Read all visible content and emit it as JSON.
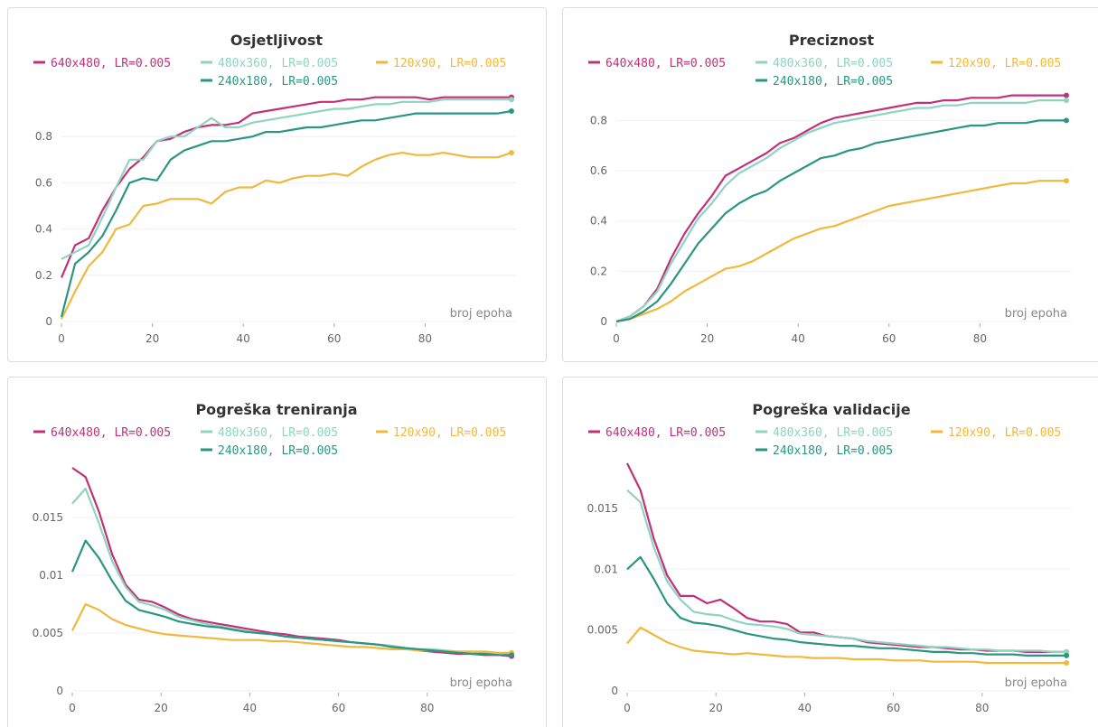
{
  "chart_data": [
    {
      "type": "line",
      "title": "Osjetljivost",
      "xlabel": "broj epoha",
      "grid": true,
      "x": [
        0,
        3,
        6,
        9,
        12,
        15,
        18,
        21,
        24,
        27,
        30,
        33,
        36,
        39,
        42,
        45,
        48,
        51,
        54,
        57,
        60,
        63,
        66,
        69,
        72,
        75,
        78,
        81,
        84,
        87,
        90,
        93,
        96,
        99
      ],
      "xlim": [
        0,
        100
      ],
      "xticks": [
        0,
        20,
        40,
        60,
        80
      ],
      "ylim": [
        0,
        1
      ],
      "yticks": [
        0,
        0.2,
        0.4,
        0.6,
        0.8
      ],
      "series": [
        {
          "name": "640x480, LR=0.005",
          "color": "#c2307a",
          "values": [
            0.19,
            0.33,
            0.36,
            0.48,
            0.58,
            0.66,
            0.71,
            0.78,
            0.79,
            0.82,
            0.84,
            0.85,
            0.85,
            0.86,
            0.9,
            0.91,
            0.92,
            0.93,
            0.94,
            0.95,
            0.95,
            0.96,
            0.96,
            0.97,
            0.97,
            0.97,
            0.97,
            0.96,
            0.97,
            0.97,
            0.97,
            0.97,
            0.97,
            0.97
          ]
        },
        {
          "name": "480x360, LR=0.005",
          "color": "#8fd3c0",
          "values": [
            0.27,
            0.3,
            0.33,
            0.45,
            0.58,
            0.7,
            0.7,
            0.78,
            0.8,
            0.8,
            0.84,
            0.88,
            0.84,
            0.84,
            0.86,
            0.87,
            0.88,
            0.89,
            0.9,
            0.91,
            0.92,
            0.92,
            0.93,
            0.94,
            0.94,
            0.95,
            0.95,
            0.95,
            0.96,
            0.96,
            0.96,
            0.96,
            0.96,
            0.96
          ]
        },
        {
          "name": "120x90, LR=0.005",
          "color": "#f0b83c",
          "values": [
            0.01,
            0.13,
            0.24,
            0.3,
            0.4,
            0.42,
            0.5,
            0.51,
            0.53,
            0.53,
            0.53,
            0.51,
            0.56,
            0.58,
            0.58,
            0.61,
            0.6,
            0.62,
            0.63,
            0.63,
            0.64,
            0.63,
            0.67,
            0.7,
            0.72,
            0.73,
            0.72,
            0.72,
            0.73,
            0.72,
            0.71,
            0.71,
            0.71,
            0.73
          ]
        },
        {
          "name": "240x180, LR=0.005",
          "color": "#2a9680",
          "values": [
            0.02,
            0.25,
            0.3,
            0.37,
            0.48,
            0.6,
            0.62,
            0.61,
            0.7,
            0.74,
            0.76,
            0.78,
            0.78,
            0.79,
            0.8,
            0.82,
            0.82,
            0.83,
            0.84,
            0.84,
            0.85,
            0.86,
            0.87,
            0.87,
            0.88,
            0.89,
            0.9,
            0.9,
            0.9,
            0.9,
            0.9,
            0.9,
            0.9,
            0.91
          ]
        }
      ]
    },
    {
      "type": "line",
      "title": "Preciznost",
      "xlabel": "broj epoha",
      "grid": true,
      "x": [
        0,
        3,
        6,
        9,
        12,
        15,
        18,
        21,
        24,
        27,
        30,
        33,
        36,
        39,
        42,
        45,
        48,
        51,
        54,
        57,
        60,
        63,
        66,
        69,
        72,
        75,
        78,
        81,
        84,
        87,
        90,
        93,
        96,
        99
      ],
      "xlim": [
        0,
        100
      ],
      "xticks": [
        0,
        20,
        40,
        60,
        80
      ],
      "ylim": [
        0,
        0.92
      ],
      "yticks": [
        0,
        0.2,
        0.4,
        0.6,
        0.8
      ],
      "series": [
        {
          "name": "640x480, LR=0.005",
          "color": "#c2307a",
          "values": [
            0,
            0.02,
            0.06,
            0.13,
            0.25,
            0.35,
            0.43,
            0.5,
            0.58,
            0.61,
            0.64,
            0.67,
            0.71,
            0.73,
            0.76,
            0.79,
            0.81,
            0.82,
            0.83,
            0.84,
            0.85,
            0.86,
            0.87,
            0.87,
            0.88,
            0.88,
            0.89,
            0.89,
            0.89,
            0.9,
            0.9,
            0.9,
            0.9,
            0.9
          ]
        },
        {
          "name": "480x360, LR=0.005",
          "color": "#8fd3c0",
          "values": [
            0,
            0.02,
            0.06,
            0.12,
            0.23,
            0.32,
            0.41,
            0.47,
            0.54,
            0.59,
            0.62,
            0.65,
            0.69,
            0.72,
            0.75,
            0.77,
            0.79,
            0.8,
            0.81,
            0.82,
            0.83,
            0.84,
            0.85,
            0.85,
            0.86,
            0.86,
            0.87,
            0.87,
            0.87,
            0.87,
            0.87,
            0.88,
            0.88,
            0.88
          ]
        },
        {
          "name": "120x90, LR=0.005",
          "color": "#f0b83c",
          "values": [
            0,
            0.01,
            0.03,
            0.05,
            0.08,
            0.12,
            0.15,
            0.18,
            0.21,
            0.22,
            0.24,
            0.27,
            0.3,
            0.33,
            0.35,
            0.37,
            0.38,
            0.4,
            0.42,
            0.44,
            0.46,
            0.47,
            0.48,
            0.49,
            0.5,
            0.51,
            0.52,
            0.53,
            0.54,
            0.55,
            0.55,
            0.56,
            0.56,
            0.56
          ]
        },
        {
          "name": "240x180, LR=0.005",
          "color": "#2a9680",
          "values": [
            0,
            0.01,
            0.04,
            0.08,
            0.15,
            0.23,
            0.31,
            0.37,
            0.43,
            0.47,
            0.5,
            0.52,
            0.56,
            0.59,
            0.62,
            0.65,
            0.66,
            0.68,
            0.69,
            0.71,
            0.72,
            0.73,
            0.74,
            0.75,
            0.76,
            0.77,
            0.78,
            0.78,
            0.79,
            0.79,
            0.79,
            0.8,
            0.8,
            0.8
          ]
        }
      ]
    },
    {
      "type": "line",
      "title": "Pogreška treniranja",
      "xlabel": "broj epoha",
      "grid": true,
      "x": [
        0,
        3,
        6,
        9,
        12,
        15,
        18,
        21,
        24,
        27,
        30,
        33,
        36,
        39,
        42,
        45,
        48,
        51,
        54,
        57,
        60,
        63,
        66,
        69,
        72,
        75,
        78,
        81,
        84,
        87,
        90,
        93,
        96,
        99
      ],
      "xlim": [
        0,
        100
      ],
      "xticks": [
        0,
        20,
        40,
        60,
        80
      ],
      "ylim": [
        0,
        0.02
      ],
      "yticks": [
        0,
        0.005,
        0.01,
        0.015
      ],
      "series": [
        {
          "name": "640x480, LR=0.005",
          "color": "#c2307a",
          "values": [
            0.0193,
            0.0185,
            0.0155,
            0.0118,
            0.0092,
            0.0079,
            0.0077,
            0.0072,
            0.0066,
            0.0062,
            0.006,
            0.0058,
            0.0056,
            0.0054,
            0.0052,
            0.005,
            0.0049,
            0.0047,
            0.0046,
            0.0045,
            0.0044,
            0.0042,
            0.0041,
            0.004,
            0.0039,
            0.0037,
            0.0035,
            0.0034,
            0.0033,
            0.0032,
            0.0032,
            0.0031,
            0.0031,
            0.003
          ]
        },
        {
          "name": "480x360, LR=0.005",
          "color": "#8fd3c0",
          "values": [
            0.0162,
            0.0175,
            0.0145,
            0.0112,
            0.009,
            0.0077,
            0.0074,
            0.007,
            0.0064,
            0.0061,
            0.0058,
            0.0056,
            0.0054,
            0.0052,
            0.005,
            0.0049,
            0.0047,
            0.0046,
            0.0045,
            0.0044,
            0.0043,
            0.0042,
            0.0041,
            0.004,
            0.0039,
            0.0037,
            0.0036,
            0.0036,
            0.0035,
            0.0034,
            0.0034,
            0.0033,
            0.0033,
            0.0032
          ]
        },
        {
          "name": "120x90, LR=0.005",
          "color": "#f0b83c",
          "values": [
            0.0052,
            0.0075,
            0.007,
            0.0062,
            0.0057,
            0.0054,
            0.0051,
            0.0049,
            0.0048,
            0.0047,
            0.0046,
            0.0045,
            0.0044,
            0.0044,
            0.0044,
            0.0043,
            0.0043,
            0.0042,
            0.0041,
            0.004,
            0.0039,
            0.0038,
            0.0038,
            0.0037,
            0.0036,
            0.0036,
            0.0035,
            0.0035,
            0.0034,
            0.0034,
            0.0034,
            0.0034,
            0.0033,
            0.0033
          ]
        },
        {
          "name": "240x180, LR=0.005",
          "color": "#2a9680",
          "values": [
            0.0103,
            0.013,
            0.0115,
            0.0095,
            0.0078,
            0.007,
            0.0067,
            0.0064,
            0.006,
            0.0058,
            0.0056,
            0.0055,
            0.0053,
            0.0051,
            0.005,
            0.0049,
            0.0047,
            0.0046,
            0.0045,
            0.0044,
            0.0043,
            0.0042,
            0.0041,
            0.004,
            0.0038,
            0.0037,
            0.0036,
            0.0035,
            0.0034,
            0.0033,
            0.0032,
            0.0032,
            0.0031,
            0.0031
          ]
        }
      ]
    },
    {
      "type": "line",
      "title": "Pogreška validacije",
      "xlabel": "broj epoha",
      "grid": true,
      "x": [
        0,
        3,
        6,
        9,
        12,
        15,
        18,
        21,
        24,
        27,
        30,
        33,
        36,
        39,
        42,
        45,
        48,
        51,
        54,
        57,
        60,
        63,
        66,
        69,
        72,
        75,
        78,
        81,
        84,
        87,
        90,
        93,
        96,
        99
      ],
      "xlim": [
        0,
        100
      ],
      "xticks": [
        0,
        20,
        40,
        60,
        80
      ],
      "ylim": [
        0,
        0.019
      ],
      "yticks": [
        0,
        0.005,
        0.01,
        0.015
      ],
      "series": [
        {
          "name": "640x480, LR=0.005",
          "color": "#c2307a",
          "values": [
            0.0187,
            0.0165,
            0.0125,
            0.0095,
            0.0078,
            0.0078,
            0.0072,
            0.0075,
            0.0068,
            0.006,
            0.0057,
            0.0057,
            0.0055,
            0.0048,
            0.0048,
            0.0045,
            0.0044,
            0.0043,
            0.004,
            0.0039,
            0.0038,
            0.0037,
            0.0036,
            0.0036,
            0.0035,
            0.0034,
            0.0034,
            0.0033,
            0.0033,
            0.0033,
            0.0032,
            0.0032,
            0.0032,
            0.0032
          ]
        },
        {
          "name": "480x360, LR=0.005",
          "color": "#8fd3c0",
          "values": [
            0.0165,
            0.0155,
            0.0118,
            0.009,
            0.0075,
            0.0065,
            0.0063,
            0.0062,
            0.0058,
            0.0055,
            0.0054,
            0.0053,
            0.0051,
            0.0047,
            0.0046,
            0.0045,
            0.0044,
            0.0043,
            0.0041,
            0.004,
            0.0039,
            0.0038,
            0.0037,
            0.0036,
            0.0036,
            0.0035,
            0.0034,
            0.0034,
            0.0033,
            0.0033,
            0.0033,
            0.0033,
            0.0032,
            0.0032
          ]
        },
        {
          "name": "120x90, LR=0.005",
          "color": "#f0b83c",
          "values": [
            0.0039,
            0.0052,
            0.0046,
            0.004,
            0.0036,
            0.0033,
            0.0032,
            0.0031,
            0.003,
            0.0031,
            0.003,
            0.0029,
            0.0028,
            0.0028,
            0.0027,
            0.0027,
            0.0027,
            0.0026,
            0.0026,
            0.0026,
            0.0025,
            0.0025,
            0.0025,
            0.0024,
            0.0024,
            0.0024,
            0.0024,
            0.0023,
            0.0023,
            0.0023,
            0.0023,
            0.0023,
            0.0023,
            0.0023
          ]
        },
        {
          "name": "240x180, LR=0.005",
          "color": "#2a9680",
          "values": [
            0.01,
            0.011,
            0.0092,
            0.0072,
            0.006,
            0.0056,
            0.0055,
            0.0053,
            0.005,
            0.0047,
            0.0045,
            0.0043,
            0.0042,
            0.004,
            0.0039,
            0.0038,
            0.0037,
            0.0037,
            0.0036,
            0.0035,
            0.0035,
            0.0034,
            0.0033,
            0.0032,
            0.0032,
            0.0031,
            0.0031,
            0.003,
            0.003,
            0.003,
            0.0029,
            0.0029,
            0.0029,
            0.0029
          ]
        }
      ]
    }
  ]
}
